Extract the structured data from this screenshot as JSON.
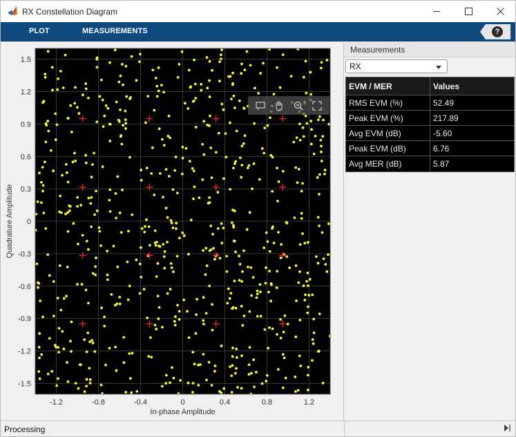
{
  "window": {
    "title": "RX Constellation Diagram",
    "minimize_icon": "minimize-icon",
    "maximize_icon": "maximize-icon",
    "close_icon": "close-icon"
  },
  "toolstrip": {
    "tabs": [
      {
        "label": "PLOT"
      },
      {
        "label": "MEASUREMENTS"
      }
    ],
    "help_label": "?",
    "background": "#0e4a7e"
  },
  "axes_toolbar": {
    "icons": [
      "data-tips-icon",
      "pan-icon",
      "zoom-in-icon",
      "restore-view-icon"
    ]
  },
  "chart_data": {
    "type": "scatter",
    "title": "",
    "xlabel": "In-phase Amplitude",
    "ylabel": "Quadrature Amplitude",
    "xlim": [
      -1.4,
      1.4
    ],
    "ylim": [
      -1.6,
      1.6
    ],
    "xticks": [
      "-1.2",
      "-0.8",
      "-0.4",
      "0",
      "0.4",
      "0.8",
      "1.2"
    ],
    "yticks": [
      "1.5",
      "1.2",
      "0.9",
      "0.6",
      "0.3",
      "0",
      "-0.3",
      "-0.6",
      "-0.9",
      "-1.2",
      "-1.5"
    ],
    "xtick_values": [
      -1.2,
      -0.8,
      -0.4,
      0,
      0.4,
      0.8,
      1.2
    ],
    "ytick_values": [
      1.5,
      1.2,
      0.9,
      0.6,
      0.3,
      0,
      -0.3,
      -0.6,
      -0.9,
      -1.2,
      -1.5
    ],
    "grid": true,
    "background": "#000000",
    "series": [
      {
        "kind": "reference",
        "marker": "+",
        "color": "#ff2a2a",
        "x": [
          -0.949,
          -0.316,
          0.316,
          0.949,
          -0.949,
          -0.316,
          0.316,
          0.949,
          -0.949,
          -0.316,
          0.316,
          0.949,
          -0.949,
          -0.316,
          0.316,
          0.949
        ],
        "y": [
          0.949,
          0.949,
          0.949,
          0.949,
          0.316,
          0.316,
          0.316,
          0.316,
          -0.316,
          -0.316,
          -0.316,
          -0.316,
          -0.949,
          -0.949,
          -0.949,
          -0.949
        ]
      },
      {
        "kind": "received",
        "marker": "dot",
        "color": "#f7f736",
        "point_count": 700,
        "x_spread": [
          -1.4,
          1.4
        ],
        "y_spread": [
          -1.6,
          1.6
        ]
      }
    ]
  },
  "measurements": {
    "title": "Measurements",
    "selector_value": "RX",
    "table": {
      "headers": [
        "EVM / MER",
        "Values"
      ],
      "rows": [
        [
          "RMS EVM (%)",
          "52.49"
        ],
        [
          "Peak EVM (%)",
          "217.89"
        ],
        [
          "Avg EVM (dB)",
          "-5.60"
        ],
        [
          "Peak EVM (dB)",
          "6.76"
        ],
        [
          "Avg MER (dB)",
          "5.87"
        ]
      ]
    }
  },
  "status": {
    "text": "Processing"
  }
}
